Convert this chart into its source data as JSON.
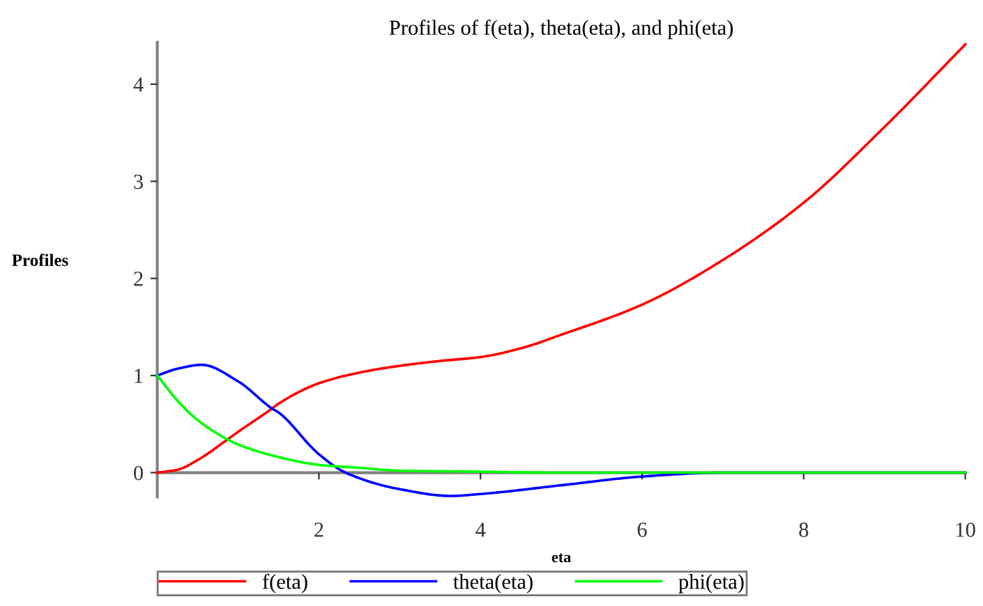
{
  "chart_data": {
    "type": "line",
    "title": "Profiles of f(eta), theta(eta), and phi(eta)",
    "xlabel": "eta",
    "ylabel": "Profiles",
    "xlim": [
      0,
      10
    ],
    "ylim": [
      -0.25,
      4.43
    ],
    "xticks": [
      2,
      4,
      6,
      8,
      10
    ],
    "yticks": [
      0,
      1,
      2,
      3,
      4
    ],
    "grid": false,
    "legend": "bottom",
    "line_style": "solid",
    "marker": "none",
    "series": [
      {
        "name": "f(eta)",
        "color": "#ff0000",
        "x": [
          0,
          0.25,
          0.5,
          0.85,
          1,
          1.42,
          1.5,
          2,
          2.5,
          3,
          3.5,
          4,
          4.5,
          5,
          6,
          7,
          8,
          9,
          10
        ],
        "values": [
          0,
          0.03,
          0.13,
          0.33,
          0.42,
          0.66,
          0.71,
          0.92,
          1.03,
          1.1,
          1.15,
          1.19,
          1.28,
          1.42,
          1.73,
          2.19,
          2.78,
          3.56,
          4.41
        ]
      },
      {
        "name": "theta(eta)",
        "color": "#0000ff",
        "x": [
          0,
          0.25,
          0.55,
          1,
          1.42,
          1.5,
          2,
          2.33,
          3,
          3.63,
          4,
          5,
          6,
          7,
          8,
          10
        ],
        "values": [
          1,
          1.07,
          1.11,
          0.94,
          0.66,
          0.62,
          0.19,
          0,
          -0.17,
          -0.24,
          -0.22,
          -0.13,
          -0.04,
          0,
          0,
          0
        ]
      },
      {
        "name": "phi(eta)",
        "color": "#00ff00",
        "x": [
          0,
          0.25,
          0.5,
          0.85,
          1,
          1.5,
          2,
          2.5,
          3,
          4,
          5,
          6,
          10
        ],
        "values": [
          1,
          0.74,
          0.54,
          0.35,
          0.29,
          0.16,
          0.08,
          0.05,
          0.02,
          0.01,
          0,
          0,
          0
        ]
      }
    ]
  }
}
